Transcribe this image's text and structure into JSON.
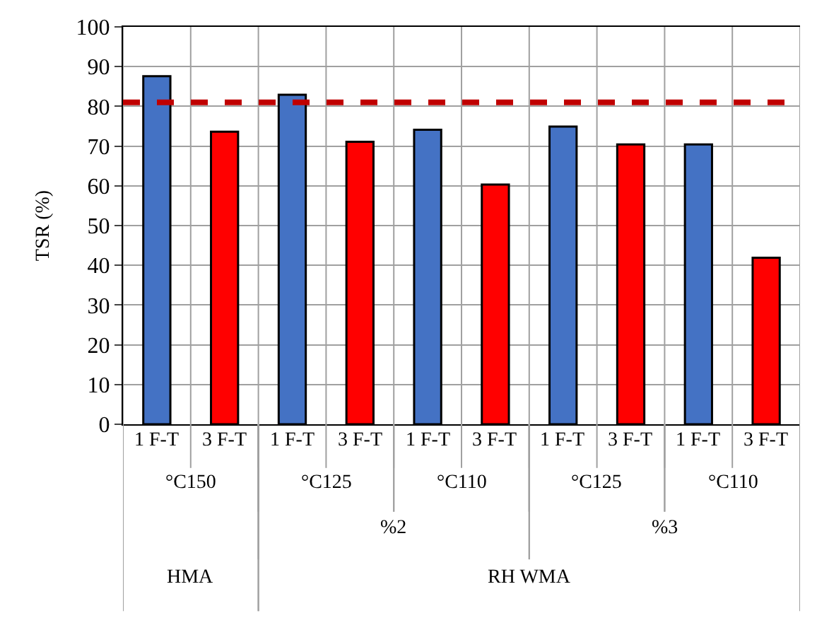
{
  "chart_data": {
    "type": "bar",
    "ylabel": "TSR (%)",
    "categories": [
      "1 F-T",
      "3 F-T",
      "1 F-T",
      "3 F-T",
      "1 F-T",
      "3 F-T",
      "1 F-T",
      "3 F-T",
      "1 F-T",
      "3 F-T"
    ],
    "values": [
      87.6,
      73.6,
      82.9,
      71.1,
      74.1,
      60.3,
      74.9,
      70.4,
      70.4,
      41.9
    ],
    "colors": [
      "#4472c4",
      "#ff0000",
      "#4472c4",
      "#ff0000",
      "#4472c4",
      "#ff0000",
      "#4472c4",
      "#ff0000",
      "#4472c4",
      "#ff0000"
    ],
    "ylim": [
      0,
      100
    ],
    "yticks": [
      0,
      10,
      20,
      30,
      40,
      50,
      60,
      70,
      80,
      90,
      100
    ],
    "grid": true,
    "legend": false,
    "ref_lines": [
      {
        "axis": "y",
        "value": 81,
        "color": "#c00000",
        "line_style": "dashed"
      }
    ],
    "annotations": [
      "°C150",
      "°C125",
      "°C110",
      "°C125",
      "°C110",
      "%2",
      "%3",
      "HMA",
      "RH WMA"
    ]
  }
}
